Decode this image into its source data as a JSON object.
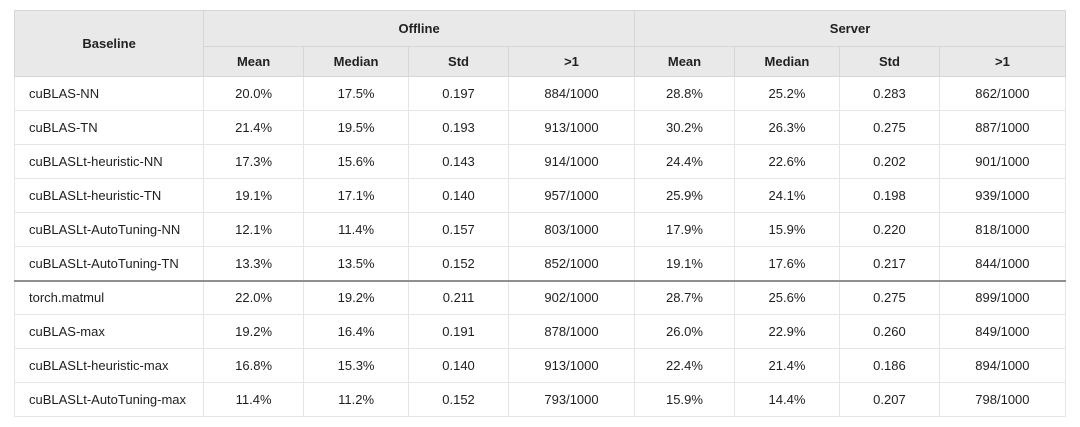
{
  "colors": {
    "header_bg": "#e9e9e9",
    "cell_border": "#e5e5e5",
    "header_border": "#d6d6d6",
    "section_divider": "#8f8f8f",
    "text": "#1f1f1f"
  },
  "chart_data": {
    "type": "table",
    "header": {
      "baseline_label": "Baseline",
      "group_labels": [
        "Offline",
        "Server"
      ],
      "sub_columns": [
        "Mean",
        "Median",
        "Std",
        ">1",
        "Mean",
        "Median",
        "Std",
        ">1"
      ]
    },
    "divider_after_row_index": 5,
    "rows": [
      {
        "baseline": "cuBLAS-NN",
        "values": [
          "20.0%",
          "17.5%",
          "0.197",
          "884/1000",
          "28.8%",
          "25.2%",
          "0.283",
          "862/1000"
        ]
      },
      {
        "baseline": "cuBLAS-TN",
        "values": [
          "21.4%",
          "19.5%",
          "0.193",
          "913/1000",
          "30.2%",
          "26.3%",
          "0.275",
          "887/1000"
        ]
      },
      {
        "baseline": "cuBLASLt-heuristic-NN",
        "values": [
          "17.3%",
          "15.6%",
          "0.143",
          "914/1000",
          "24.4%",
          "22.6%",
          "0.202",
          "901/1000"
        ]
      },
      {
        "baseline": "cuBLASLt-heuristic-TN",
        "values": [
          "19.1%",
          "17.1%",
          "0.140",
          "957/1000",
          "25.9%",
          "24.1%",
          "0.198",
          "939/1000"
        ]
      },
      {
        "baseline": "cuBLASLt-AutoTuning-NN",
        "values": [
          "12.1%",
          "11.4%",
          "0.157",
          "803/1000",
          "17.9%",
          "15.9%",
          "0.220",
          "818/1000"
        ]
      },
      {
        "baseline": "cuBLASLt-AutoTuning-TN",
        "values": [
          "13.3%",
          "13.5%",
          "0.152",
          "852/1000",
          "19.1%",
          "17.6%",
          "0.217",
          "844/1000"
        ]
      },
      {
        "baseline": "torch.matmul",
        "values": [
          "22.0%",
          "19.2%",
          "0.211",
          "902/1000",
          "28.7%",
          "25.6%",
          "0.275",
          "899/1000"
        ]
      },
      {
        "baseline": "cuBLAS-max",
        "values": [
          "19.2%",
          "16.4%",
          "0.191",
          "878/1000",
          "26.0%",
          "22.9%",
          "0.260",
          "849/1000"
        ]
      },
      {
        "baseline": "cuBLASLt-heuristic-max",
        "values": [
          "16.8%",
          "15.3%",
          "0.140",
          "913/1000",
          "22.4%",
          "21.4%",
          "0.186",
          "894/1000"
        ]
      },
      {
        "baseline": "cuBLASLt-AutoTuning-max",
        "values": [
          "11.4%",
          "11.2%",
          "0.152",
          "793/1000",
          "15.9%",
          "14.4%",
          "0.207",
          "798/1000"
        ]
      }
    ]
  }
}
